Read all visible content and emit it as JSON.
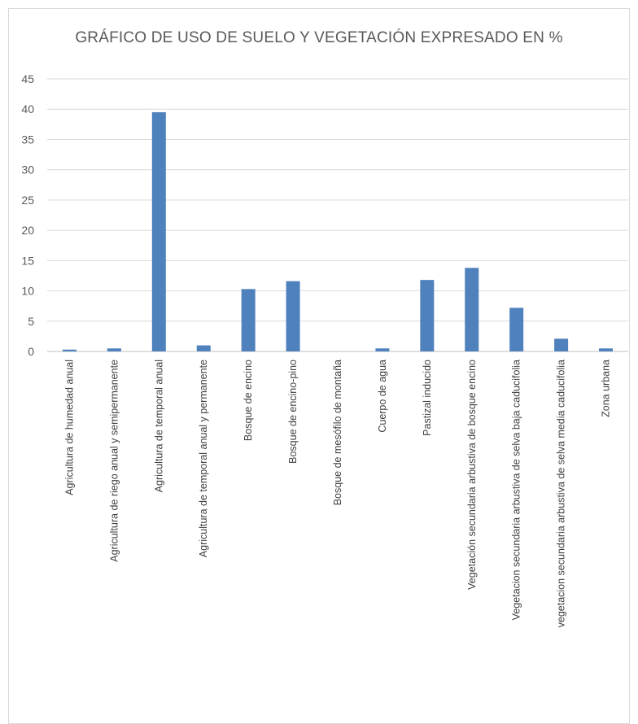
{
  "chart_data": {
    "type": "bar",
    "title": "GRÁFICO DE USO DE SUELO Y VEGETACIÓN EXPRESADO EN %",
    "xlabel": "",
    "ylabel": "",
    "ylim": [
      0,
      45
    ],
    "yticks": [
      0,
      5,
      10,
      15,
      20,
      25,
      30,
      35,
      40,
      45
    ],
    "grid": true,
    "legend": "none",
    "bar_color": "#4f81bd",
    "categories": [
      "Agricultura de humedad anual",
      "Agricultura de riego anual y semipermanente",
      "Agricultura de temporal anual",
      "Agricultura de temporal anual y permanente",
      "Bosque de encino",
      "Bosque de encino-pino",
      "Bosque de mesófilo de montaña",
      "Cuerpo de agua",
      "Pastizal inducido",
      "Vegetación secundaria arbustiva de bosque encino",
      "Vegetacion secundaria arbustiva de selva baja caducifolia",
      "vegetacion secundaria arbustiva de selva media caducifolia",
      "Zona urbana"
    ],
    "values": [
      0.3,
      0.5,
      39.5,
      1.0,
      10.3,
      11.6,
      0.0,
      0.5,
      11.8,
      13.8,
      7.2,
      2.1,
      0.5
    ]
  }
}
